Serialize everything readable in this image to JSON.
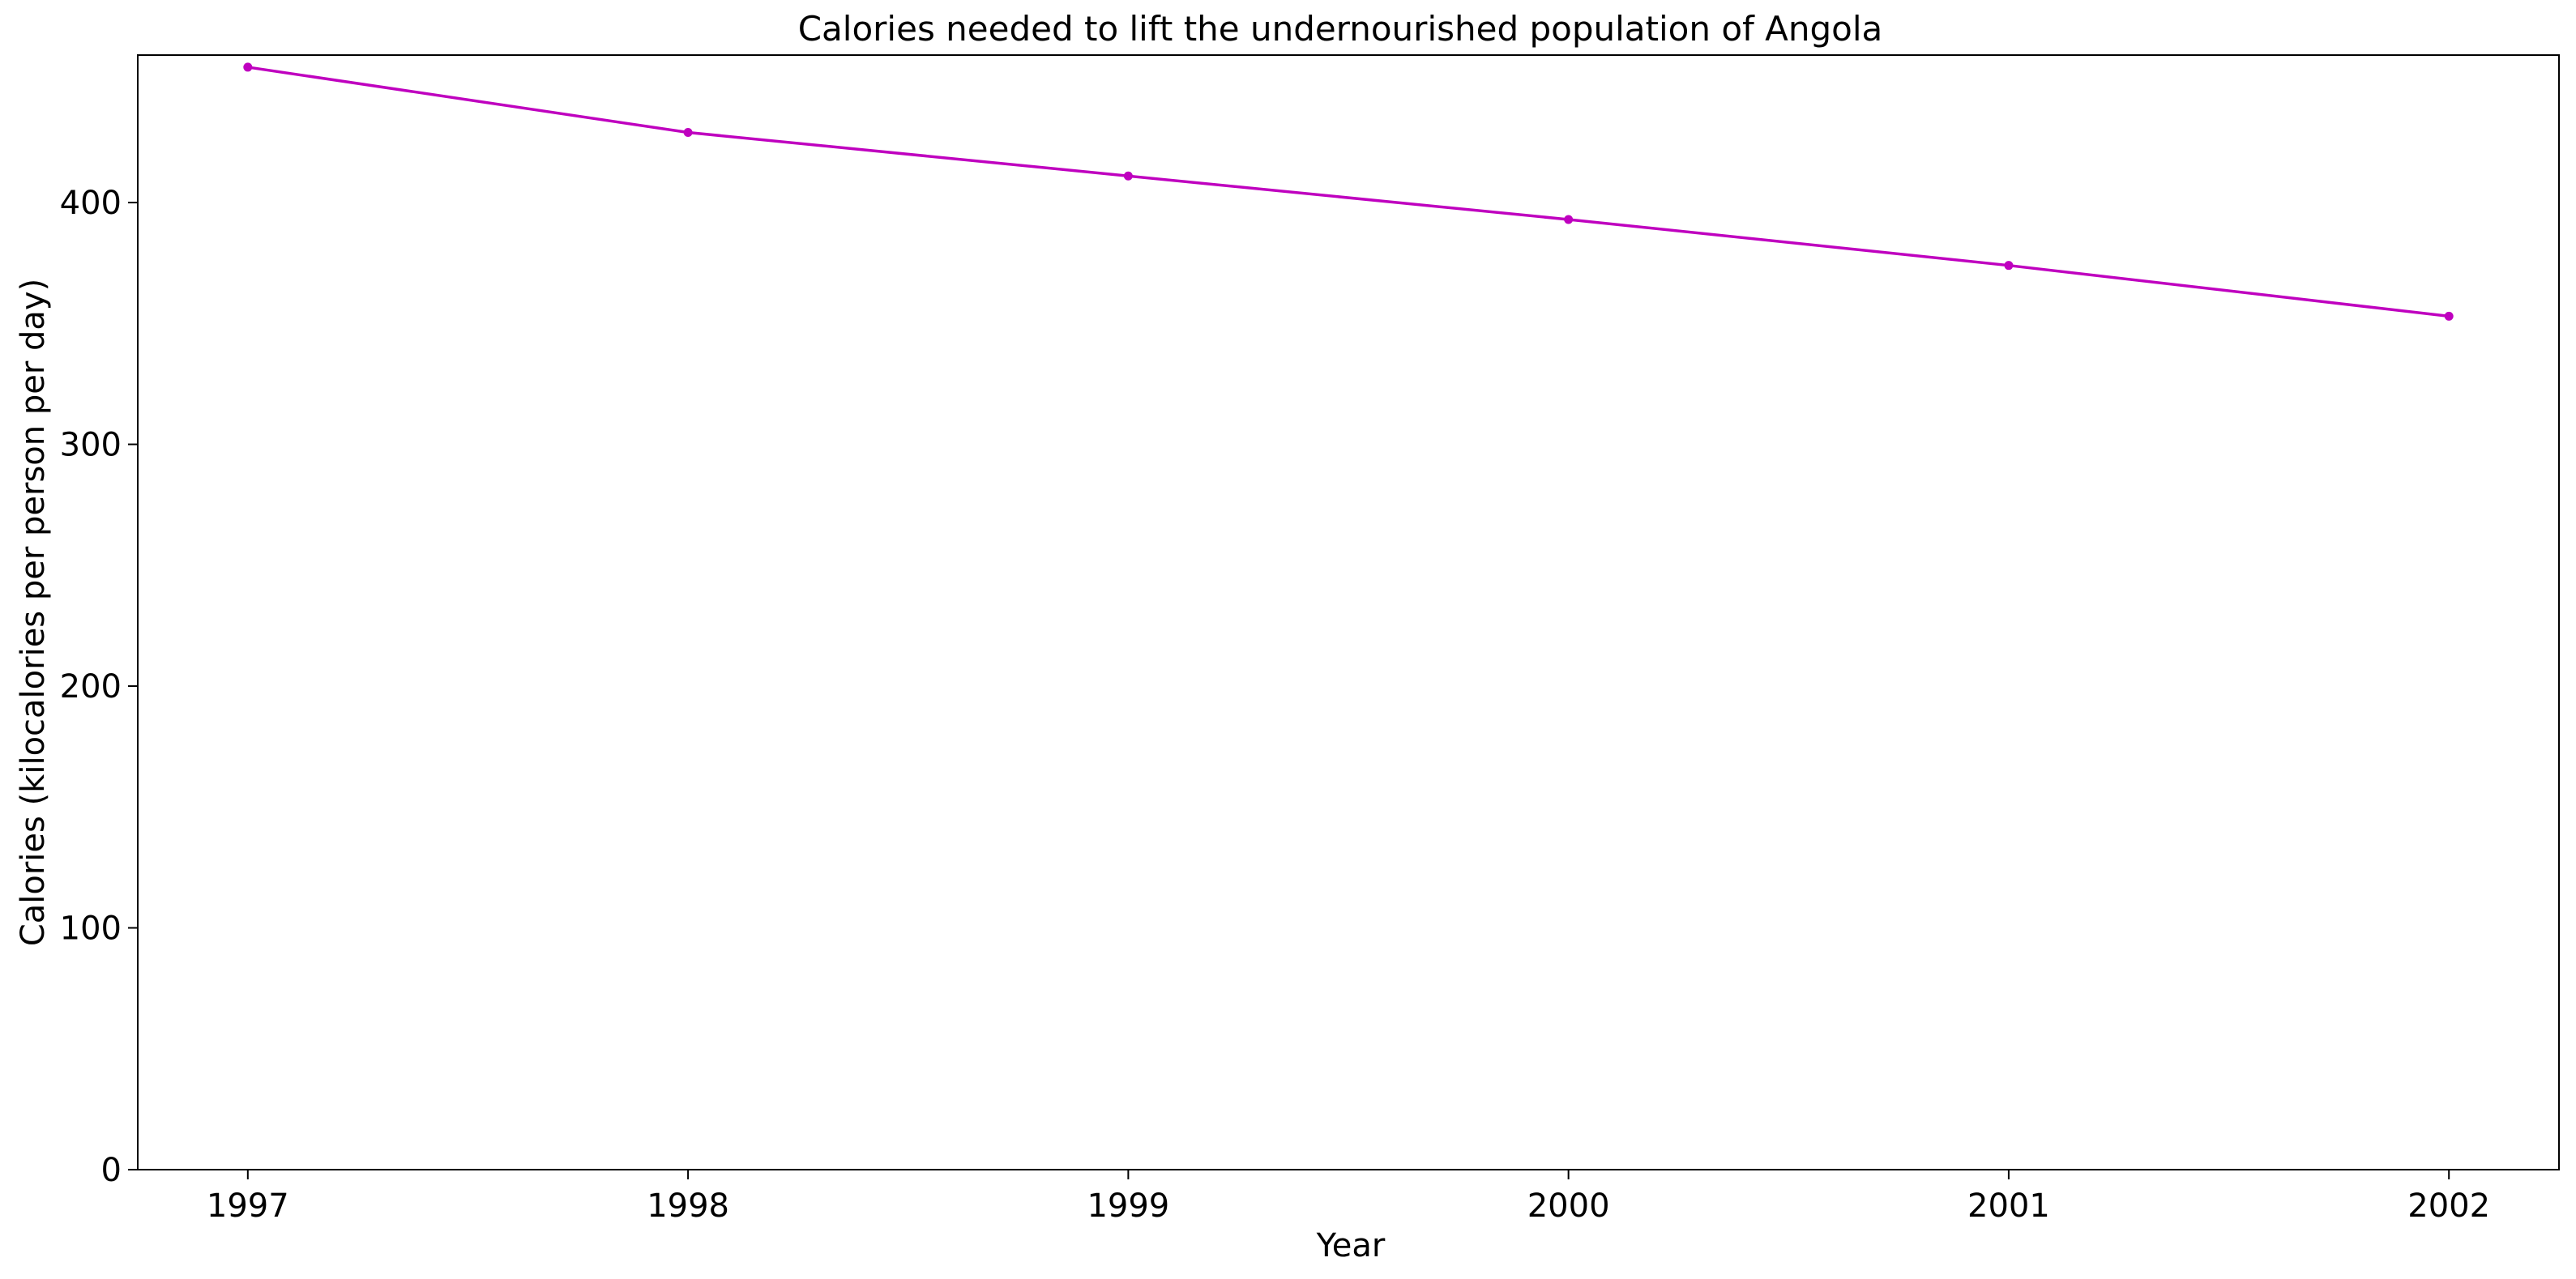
{
  "chart_data": {
    "type": "line",
    "title": "Calories needed to lift the undernourished population of Angola",
    "xlabel": "Year",
    "ylabel": "Calories (kilocalories per person per day)",
    "x": [
      1997,
      1998,
      1999,
      2000,
      2001,
      2002
    ],
    "series": [
      {
        "values": [
          456,
          429,
          411,
          393,
          374,
          353
        ],
        "color": "#bf00bf",
        "marker": "circle"
      }
    ],
    "xlim": [
      1996.75,
      2002.25
    ],
    "ylim": [
      0,
      461
    ],
    "xticks": [
      "1997",
      "1998",
      "1999",
      "2000",
      "2001",
      "2002"
    ],
    "yticks": [
      0,
      100,
      200,
      300,
      400
    ],
    "grid": false
  }
}
